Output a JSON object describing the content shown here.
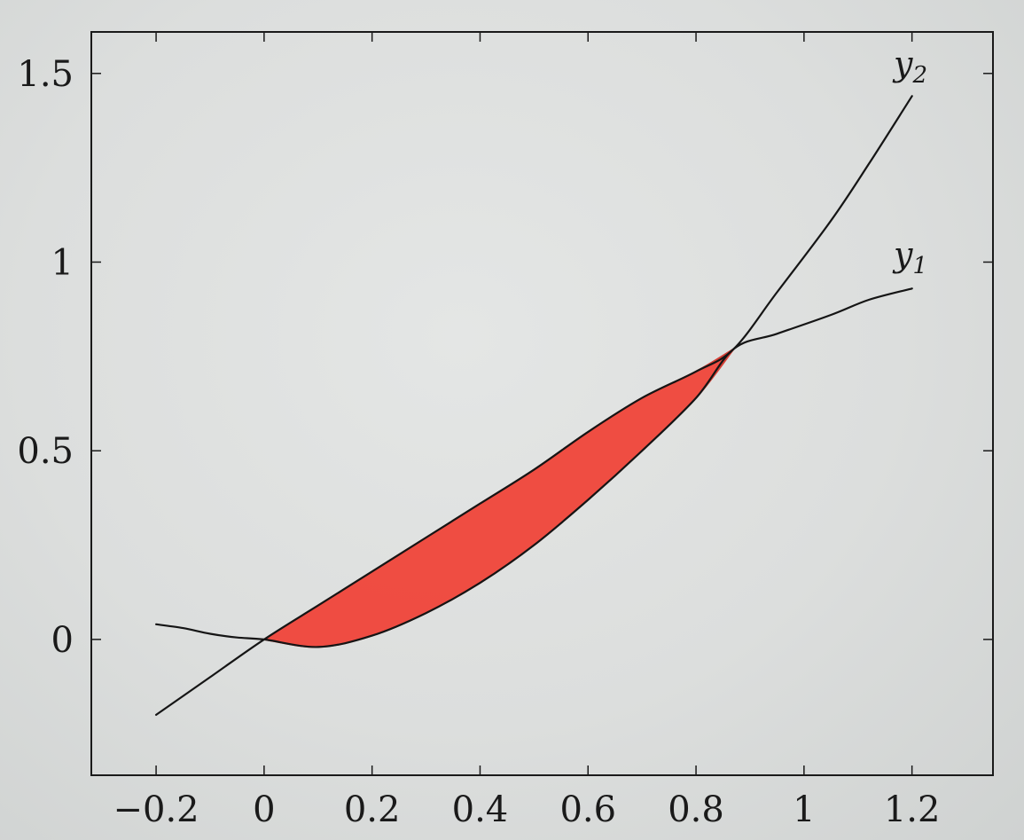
{
  "chart_data": {
    "type": "line",
    "title": "",
    "xlabel": "",
    "ylabel": "",
    "xlim": [
      -0.32,
      1.35
    ],
    "ylim": [
      -0.36,
      1.61
    ],
    "x_ticks": [
      -0.2,
      0,
      0.2,
      0.4,
      0.6,
      0.8,
      1,
      1.2
    ],
    "x_tick_labels": [
      "−0.2",
      "0",
      "0.2",
      "0.4",
      "0.6",
      "0.8",
      "1",
      "1.2"
    ],
    "y_ticks": [
      0,
      0.5,
      1,
      1.5
    ],
    "y_tick_labels": [
      "0",
      "0.5",
      "1",
      "1.5"
    ],
    "grid": false,
    "series": [
      {
        "name": "y2",
        "label_main": "y",
        "label_sub": "2",
        "x": [
          -0.2,
          -0.1,
          0,
          0.1,
          0.2,
          0.3,
          0.4,
          0.5,
          0.6,
          0.7,
          0.8,
          0.87,
          0.95,
          1.05,
          1.12,
          1.2
        ],
        "y": [
          -0.2,
          -0.1,
          0.0,
          0.09,
          0.18,
          0.27,
          0.36,
          0.45,
          0.55,
          0.64,
          0.71,
          0.77,
          0.92,
          1.11,
          1.26,
          1.44
        ]
      },
      {
        "name": "y1",
        "label_main": "y",
        "label_sub": "1",
        "x": [
          -0.2,
          -0.15,
          -0.1,
          -0.05,
          0,
          0.1,
          0.2,
          0.3,
          0.4,
          0.5,
          0.6,
          0.7,
          0.8,
          0.87,
          0.95,
          1.05,
          1.12,
          1.2
        ],
        "y": [
          0.04,
          0.03,
          0.015,
          0.005,
          0.0,
          -0.02,
          0.01,
          0.07,
          0.15,
          0.25,
          0.37,
          0.5,
          0.64,
          0.77,
          0.81,
          0.86,
          0.9,
          0.93
        ]
      }
    ],
    "shaded_region": {
      "between": [
        "y2",
        "y1"
      ],
      "x_range": [
        0,
        0.87
      ],
      "color": "#f0473c",
      "edge_color": "#d63a30"
    },
    "colors": {
      "line": "#151515",
      "axis": "#1a1a1a",
      "fill": "#f0473c"
    }
  }
}
